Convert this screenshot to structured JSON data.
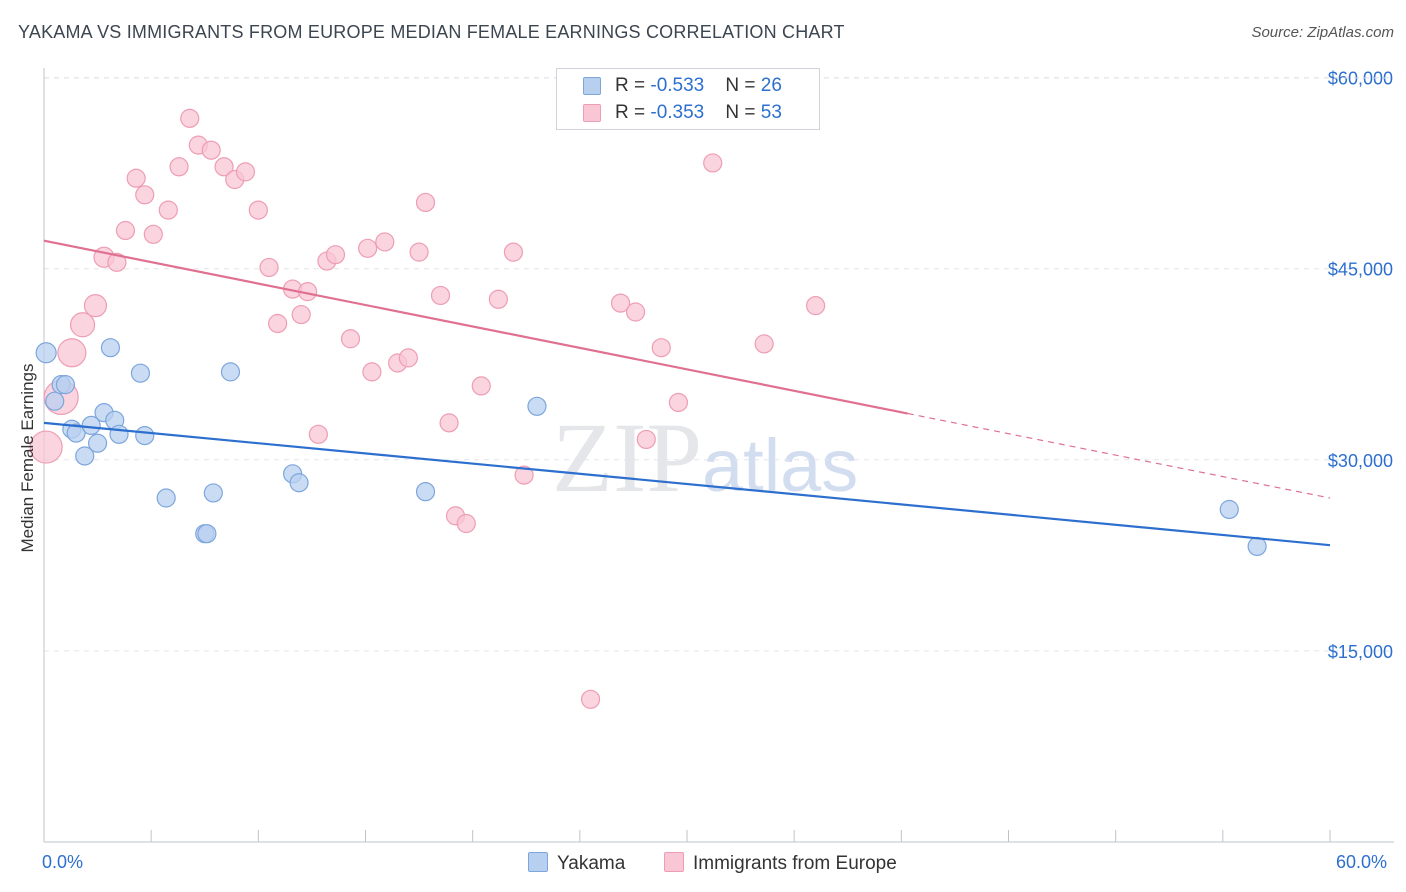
{
  "title": "YAKAMA VS IMMIGRANTS FROM EUROPE MEDIAN FEMALE EARNINGS CORRELATION CHART",
  "source": "Source: ZipAtlas.com",
  "watermark": {
    "zip": "ZIP",
    "atlas": "atlas"
  },
  "legend_top": [
    {
      "label": "R = ",
      "r": "-0.533",
      "n_label": "N = ",
      "n": "26"
    },
    {
      "label": "R = ",
      "r": "-0.353",
      "n_label": "N = ",
      "n": "53"
    }
  ],
  "colors": {
    "blue_fill": "#b8d0f0",
    "blue_stroke": "#7da6dc",
    "blue_line": "#2d6fcf",
    "pink_fill": "#f8c6d4",
    "pink_stroke": "#ee9db4",
    "pink_line": "#e0708f",
    "tick_text": "#2d6fcf",
    "grid": "#e2e5ea"
  },
  "chart_data": {
    "type": "scatter",
    "title": "YAKAMA VS IMMIGRANTS FROM EUROPE MEDIAN FEMALE EARNINGS CORRELATION CHART",
    "xlabel": "",
    "ylabel": "Median Female Earnings",
    "xlim": [
      0,
      60
    ],
    "ylim": [
      0,
      62000
    ],
    "x_tick_labels": {
      "left": "0.0%",
      "right": "60.0%"
    },
    "y_ticks": [
      15000,
      30000,
      45000,
      60000
    ],
    "y_tick_labels": [
      "$15,000",
      "$30,000",
      "$45,000",
      "$60,000"
    ],
    "series": [
      {
        "name": "Yakama",
        "r": -0.533,
        "n": 26,
        "trend": {
          "x": [
            0,
            60
          ],
          "y": [
            32900,
            23300
          ],
          "dashed_from": null
        },
        "points": [
          {
            "x": 0.1,
            "y": 38400,
            "s": 10
          },
          {
            "x": 0.5,
            "y": 34600,
            "s": 9
          },
          {
            "x": 0.8,
            "y": 35900,
            "s": 9
          },
          {
            "x": 1.0,
            "y": 35900,
            "s": 9
          },
          {
            "x": 1.3,
            "y": 32400,
            "s": 9
          },
          {
            "x": 1.5,
            "y": 32100,
            "s": 9
          },
          {
            "x": 1.9,
            "y": 30300,
            "s": 9
          },
          {
            "x": 2.2,
            "y": 32700,
            "s": 9
          },
          {
            "x": 2.5,
            "y": 31300,
            "s": 9
          },
          {
            "x": 2.8,
            "y": 33700,
            "s": 9
          },
          {
            "x": 3.1,
            "y": 38800,
            "s": 9
          },
          {
            "x": 3.3,
            "y": 33100,
            "s": 9
          },
          {
            "x": 3.5,
            "y": 32000,
            "s": 9
          },
          {
            "x": 4.5,
            "y": 36800,
            "s": 9
          },
          {
            "x": 4.7,
            "y": 31900,
            "s": 9
          },
          {
            "x": 5.7,
            "y": 27000,
            "s": 9
          },
          {
            "x": 7.5,
            "y": 24200,
            "s": 9
          },
          {
            "x": 7.6,
            "y": 24200,
            "s": 9
          },
          {
            "x": 7.9,
            "y": 27400,
            "s": 9
          },
          {
            "x": 8.7,
            "y": 36900,
            "s": 9
          },
          {
            "x": 11.6,
            "y": 28900,
            "s": 9
          },
          {
            "x": 11.9,
            "y": 28200,
            "s": 9
          },
          {
            "x": 17.8,
            "y": 27500,
            "s": 9
          },
          {
            "x": 23.0,
            "y": 34200,
            "s": 9
          },
          {
            "x": 55.3,
            "y": 26100,
            "s": 9
          },
          {
            "x": 56.6,
            "y": 23200,
            "s": 9
          }
        ]
      },
      {
        "name": "Immigrants from Europe",
        "r": -0.353,
        "n": 53,
        "trend": {
          "x": [
            0,
            60
          ],
          "y": [
            47200,
            27000
          ],
          "dashed_from": 40.3
        },
        "points": [
          {
            "x": 0.1,
            "y": 31000,
            "s": 16
          },
          {
            "x": 0.8,
            "y": 34900,
            "s": 17
          },
          {
            "x": 1.3,
            "y": 38400,
            "s": 14
          },
          {
            "x": 1.8,
            "y": 40600,
            "s": 12
          },
          {
            "x": 2.4,
            "y": 42100,
            "s": 11
          },
          {
            "x": 2.8,
            "y": 45900,
            "s": 10
          },
          {
            "x": 3.4,
            "y": 45500,
            "s": 9
          },
          {
            "x": 3.8,
            "y": 48000,
            "s": 9
          },
          {
            "x": 4.3,
            "y": 52100,
            "s": 9
          },
          {
            "x": 4.7,
            "y": 50800,
            "s": 9
          },
          {
            "x": 5.1,
            "y": 47700,
            "s": 9
          },
          {
            "x": 5.8,
            "y": 49600,
            "s": 9
          },
          {
            "x": 6.3,
            "y": 53000,
            "s": 9
          },
          {
            "x": 6.8,
            "y": 56800,
            "s": 9
          },
          {
            "x": 7.2,
            "y": 54700,
            "s": 9
          },
          {
            "x": 7.8,
            "y": 54300,
            "s": 9
          },
          {
            "x": 8.4,
            "y": 53000,
            "s": 9
          },
          {
            "x": 8.9,
            "y": 52000,
            "s": 9
          },
          {
            "x": 9.4,
            "y": 52600,
            "s": 9
          },
          {
            "x": 10.0,
            "y": 49600,
            "s": 9
          },
          {
            "x": 10.5,
            "y": 45100,
            "s": 9
          },
          {
            "x": 10.9,
            "y": 40700,
            "s": 9
          },
          {
            "x": 11.6,
            "y": 43400,
            "s": 9
          },
          {
            "x": 12.0,
            "y": 41400,
            "s": 9
          },
          {
            "x": 12.3,
            "y": 43200,
            "s": 9
          },
          {
            "x": 12.8,
            "y": 32000,
            "s": 9
          },
          {
            "x": 13.2,
            "y": 45600,
            "s": 9
          },
          {
            "x": 13.6,
            "y": 46100,
            "s": 9
          },
          {
            "x": 14.3,
            "y": 39500,
            "s": 9
          },
          {
            "x": 15.1,
            "y": 46600,
            "s": 9
          },
          {
            "x": 15.3,
            "y": 36900,
            "s": 9
          },
          {
            "x": 15.9,
            "y": 47100,
            "s": 9
          },
          {
            "x": 16.5,
            "y": 37600,
            "s": 9
          },
          {
            "x": 17.0,
            "y": 38000,
            "s": 9
          },
          {
            "x": 17.5,
            "y": 46300,
            "s": 9
          },
          {
            "x": 17.8,
            "y": 50200,
            "s": 9
          },
          {
            "x": 18.5,
            "y": 42900,
            "s": 9
          },
          {
            "x": 18.9,
            "y": 32900,
            "s": 9
          },
          {
            "x": 19.2,
            "y": 25600,
            "s": 9
          },
          {
            "x": 19.7,
            "y": 25000,
            "s": 9
          },
          {
            "x": 20.4,
            "y": 35800,
            "s": 9
          },
          {
            "x": 21.2,
            "y": 42600,
            "s": 9
          },
          {
            "x": 21.9,
            "y": 46300,
            "s": 9
          },
          {
            "x": 22.4,
            "y": 28800,
            "s": 9
          },
          {
            "x": 25.5,
            "y": 11200,
            "s": 9
          },
          {
            "x": 26.9,
            "y": 42300,
            "s": 9
          },
          {
            "x": 27.6,
            "y": 41600,
            "s": 9
          },
          {
            "x": 28.1,
            "y": 31600,
            "s": 9
          },
          {
            "x": 28.8,
            "y": 38800,
            "s": 9
          },
          {
            "x": 29.6,
            "y": 34500,
            "s": 9
          },
          {
            "x": 31.2,
            "y": 53300,
            "s": 9
          },
          {
            "x": 33.6,
            "y": 39100,
            "s": 9
          },
          {
            "x": 36.0,
            "y": 42100,
            "s": 9
          }
        ]
      }
    ]
  }
}
